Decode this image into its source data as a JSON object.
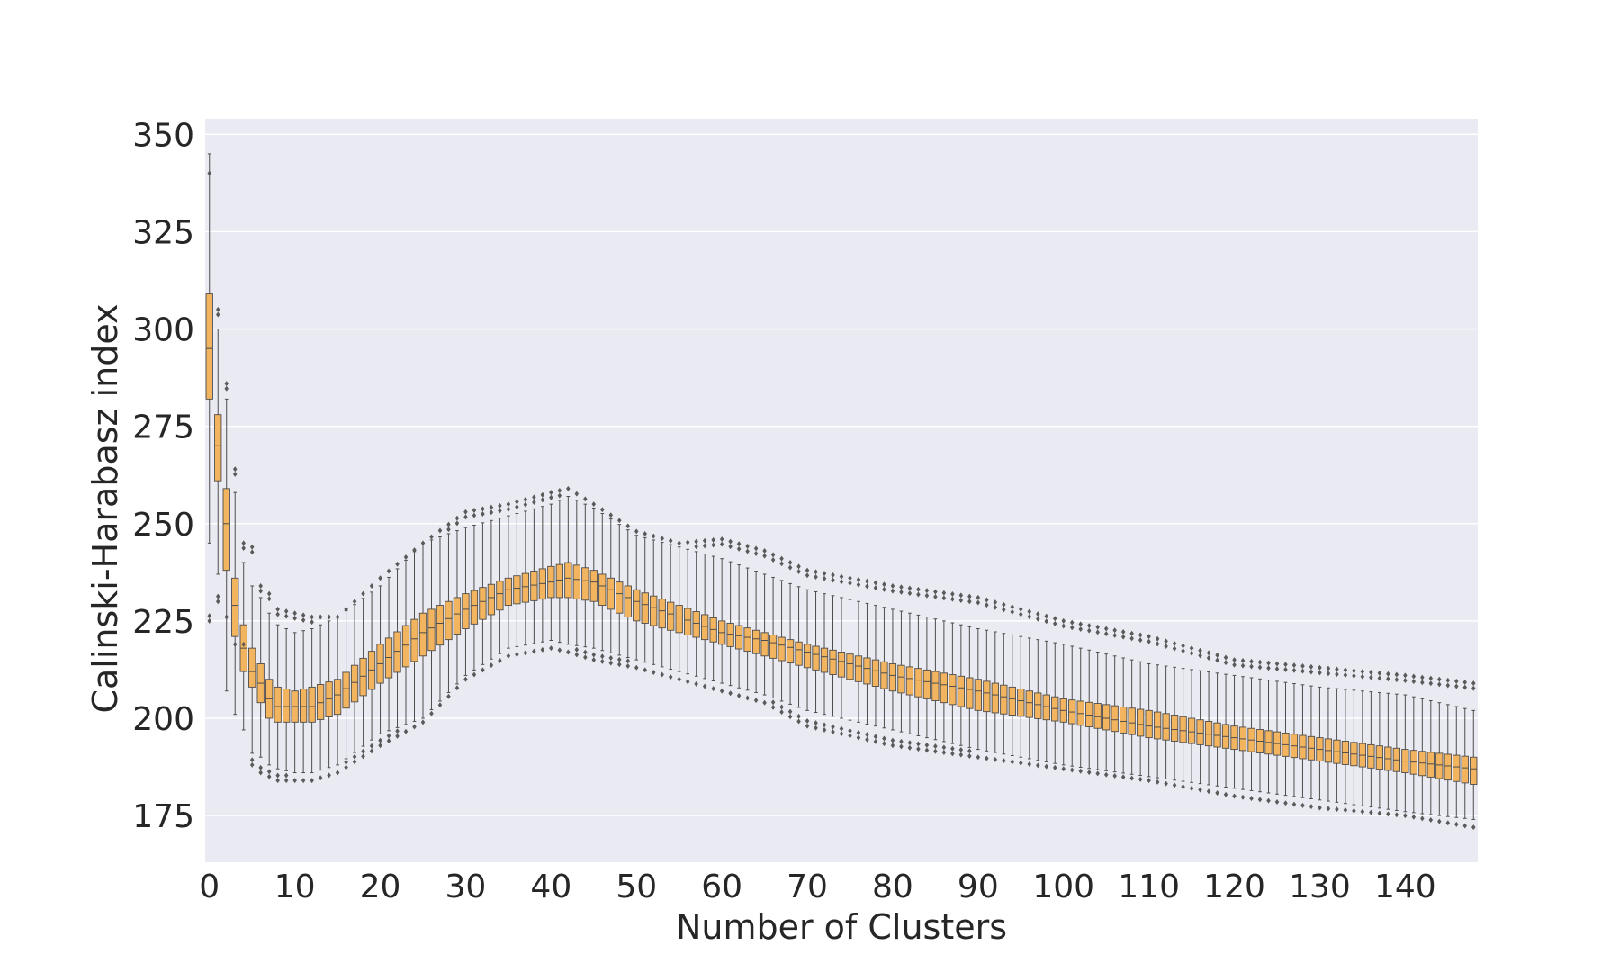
{
  "chart_data": {
    "type": "box",
    "title": "",
    "xlabel": "Number of Clusters",
    "ylabel": "Calinski-Harabasz index",
    "ylim": [
      163,
      354
    ],
    "y_ticks": [
      175,
      200,
      225,
      250,
      275,
      300,
      325,
      350
    ],
    "x_tick_labels": [
      "0",
      "10",
      "20",
      "30",
      "40",
      "50",
      "60",
      "70",
      "80",
      "90",
      "100",
      "110",
      "120",
      "130",
      "140"
    ],
    "x_tick_positions": [
      0,
      10,
      20,
      30,
      40,
      50,
      60,
      70,
      80,
      90,
      100,
      110,
      120,
      130,
      140
    ],
    "n_boxes": 149,
    "box_keypoints": {
      "x": [
        0,
        1,
        2,
        3,
        4,
        5,
        6,
        7,
        8,
        10,
        12,
        15,
        20,
        25,
        30,
        35,
        40,
        42,
        45,
        50,
        55,
        60,
        65,
        70,
        80,
        90,
        100,
        110,
        120,
        130,
        140,
        148
      ],
      "median": [
        295,
        270,
        250,
        229,
        218,
        212,
        209,
        205,
        203,
        203,
        203,
        206,
        214,
        222,
        228,
        233,
        235,
        236,
        235,
        230,
        226,
        222,
        220,
        217,
        211,
        207,
        202,
        198,
        195,
        192,
        189,
        187
      ],
      "q1": [
        282,
        261,
        238,
        221,
        212,
        208,
        204,
        200,
        199,
        199,
        199,
        201,
        209,
        216,
        223,
        229,
        231,
        231,
        230,
        225,
        222,
        219,
        216,
        213,
        207,
        202,
        199,
        195,
        192,
        189,
        186,
        183
      ],
      "q3": [
        309,
        278,
        259,
        236,
        224,
        218,
        214,
        210,
        208,
        207,
        208,
        210,
        219,
        227,
        232,
        236,
        239,
        240,
        238,
        233,
        229,
        225,
        222,
        219,
        214,
        210,
        205,
        202,
        198,
        195,
        192,
        190
      ],
      "whisker_lo": [
        245,
        237,
        207,
        201,
        197,
        191,
        190,
        188,
        187,
        186,
        186,
        188,
        196,
        200,
        211,
        218,
        220,
        219,
        218,
        215,
        212,
        209,
        206,
        202,
        197,
        192,
        188,
        185,
        182,
        179,
        176,
        174
      ],
      "whisker_hi": [
        345,
        300,
        282,
        258,
        240,
        234,
        231,
        227,
        224,
        222,
        223,
        226,
        234,
        245,
        249,
        252,
        255,
        257,
        254,
        247,
        244,
        241,
        237,
        233,
        228,
        223,
        219,
        214,
        211,
        208,
        206,
        202
      ],
      "flier_lo": [
        225,
        230,
        226,
        219,
        219,
        188,
        186,
        185,
        184,
        184,
        184,
        186,
        193,
        199,
        210,
        216,
        218,
        217,
        215,
        213,
        210,
        207,
        204,
        198,
        193,
        190,
        187,
        184,
        180,
        177,
        175,
        172
      ],
      "flier_hi": [
        340,
        305,
        286,
        264,
        245,
        244,
        234,
        232,
        228,
        227,
        226,
        226,
        236,
        245,
        253,
        255,
        258,
        259,
        255,
        248,
        245,
        246,
        243,
        238,
        234,
        231,
        225,
        221,
        215,
        213,
        211,
        209
      ]
    },
    "grid": true,
    "colors": {
      "background": "#eaeaf2",
      "grid": "#ffffff",
      "box_fill": "#f2b45e",
      "box_edge": "#4d4d4d",
      "median": "#4d4d4d",
      "whisker": "#4d4d4d",
      "flier": "#5a5a5a",
      "text": "#262626"
    }
  }
}
